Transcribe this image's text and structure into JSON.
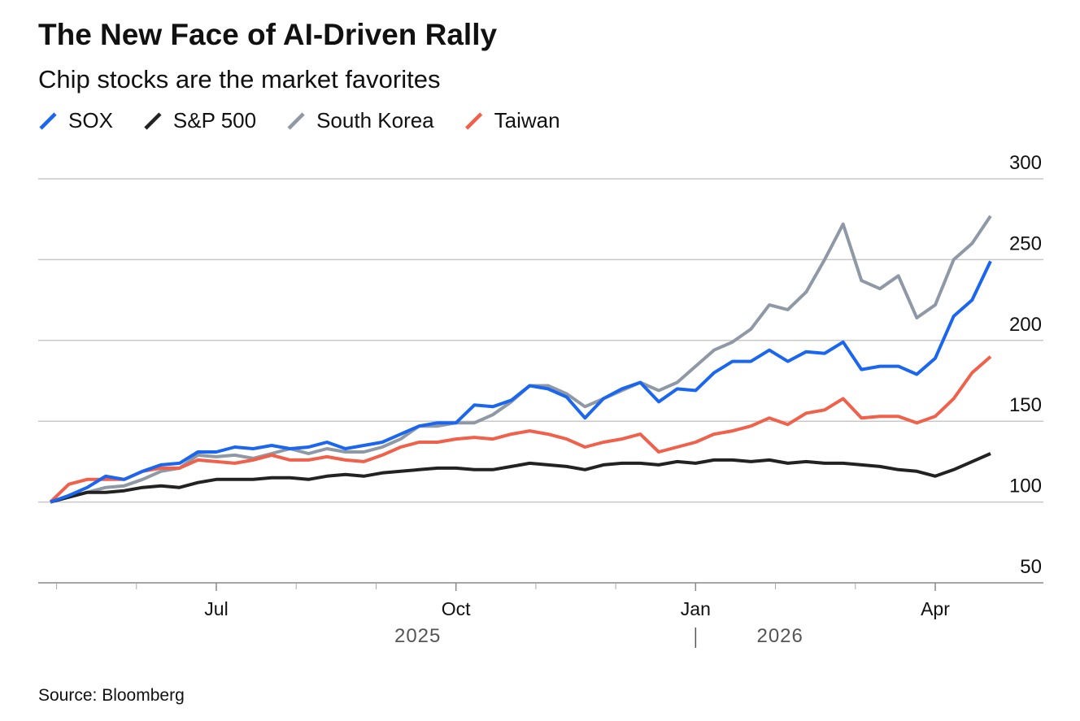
{
  "chart_data": {
    "type": "line",
    "title": "The New Face of AI-Driven Rally",
    "subtitle": "Chip stocks are the market favorites",
    "source": "Source: Bloomberg",
    "categories": [
      null,
      null,
      null,
      null,
      null,
      null,
      null,
      null,
      null,
      "Jul",
      null,
      null,
      null,
      null,
      null,
      null,
      null,
      null,
      null,
      null,
      null,
      null,
      "Oct",
      null,
      null,
      null,
      null,
      null,
      null,
      null,
      null,
      null,
      null,
      null,
      null,
      "Jan",
      null,
      null,
      null,
      null,
      null,
      null,
      null,
      null,
      null,
      null,
      null,
      null,
      "Apr",
      null,
      null,
      null
    ],
    "x_groups": [
      "2025",
      "2026"
    ],
    "series": [
      {
        "name": "SOX",
        "color": "#1a66f0",
        "values": [
          100,
          104,
          109,
          116,
          114,
          119,
          123,
          124,
          131,
          131,
          134,
          133,
          135,
          133,
          134,
          137,
          133,
          135,
          137,
          142,
          147,
          149,
          149,
          160,
          159,
          163,
          172,
          170,
          165,
          152,
          164,
          170,
          174,
          162,
          170,
          169,
          180,
          187,
          187,
          194,
          187,
          193,
          192,
          199,
          182,
          184,
          184,
          179,
          189,
          215,
          225,
          249
        ]
      },
      {
        "name": "S&P 500",
        "color": "#222222",
        "values": [
          100,
          103,
          106,
          106,
          107,
          109,
          110,
          109,
          112,
          114,
          114,
          114,
          115,
          115,
          114,
          116,
          117,
          116,
          118,
          119,
          120,
          121,
          121,
          120,
          120,
          122,
          124,
          123,
          122,
          120,
          123,
          124,
          124,
          123,
          125,
          124,
          126,
          126,
          125,
          126,
          124,
          125,
          124,
          124,
          123,
          122,
          120,
          119,
          116,
          120,
          125,
          130
        ]
      },
      {
        "name": "South Korea",
        "color": "#8f99a6",
        "values": [
          100,
          103,
          106,
          109,
          110,
          114,
          119,
          121,
          129,
          128,
          129,
          127,
          130,
          133,
          130,
          133,
          131,
          131,
          134,
          139,
          147,
          147,
          149,
          149,
          154,
          162,
          172,
          172,
          167,
          159,
          164,
          169,
          174,
          169,
          174,
          184,
          194,
          199,
          207,
          222,
          219,
          230,
          250,
          272,
          237,
          232,
          240,
          214,
          222,
          250,
          260,
          277
        ]
      },
      {
        "name": "Taiwan",
        "color": "#f0604a",
        "values": [
          100,
          111,
          114,
          114,
          114,
          119,
          121,
          121,
          126,
          125,
          124,
          126,
          129,
          126,
          126,
          128,
          126,
          125,
          129,
          134,
          137,
          137,
          139,
          140,
          139,
          142,
          144,
          142,
          139,
          134,
          137,
          139,
          142,
          131,
          134,
          137,
          142,
          144,
          147,
          152,
          148,
          155,
          157,
          164,
          152,
          153,
          153,
          149,
          153,
          164,
          180,
          190
        ]
      }
    ],
    "ylim": [
      50,
      300
    ],
    "yticks": [
      50,
      100,
      150,
      200,
      250,
      300
    ],
    "grid": true
  }
}
